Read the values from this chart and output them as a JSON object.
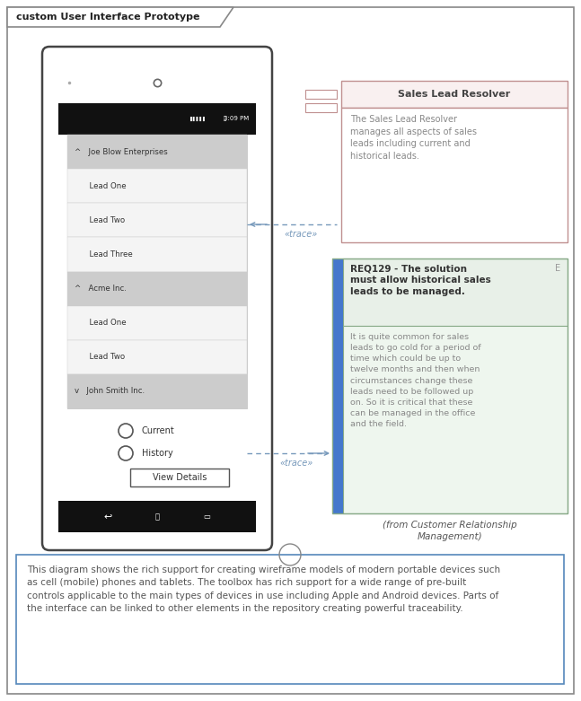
{
  "title": "custom User Interface Prototype",
  "bg_color": "#ffffff",
  "border_color": "#888888",
  "phone": {
    "body_color": "#ffffff",
    "body_border": "#444444",
    "screen_bg": "#111111",
    "list_header_bg": "#cccccc",
    "list_item_bg": "#f4f4f4",
    "items": [
      {
        "text": "^   Joe Blow Enterprises",
        "is_header": true
      },
      {
        "text": "      Lead One",
        "is_header": false
      },
      {
        "text": "      Lead Two",
        "is_header": false
      },
      {
        "text": "      Lead Three",
        "is_header": false
      },
      {
        "text": "^   Acme Inc.",
        "is_header": true
      },
      {
        "text": "      Lead One",
        "is_header": false
      },
      {
        "text": "      Lead Two",
        "is_header": false
      },
      {
        "text": "v   John Smith Inc.",
        "is_header": true
      }
    ]
  },
  "resolver_title": "Sales Lead Resolver",
  "resolver_desc": "The Sales Lead Resolver\nmanages all aspects of sales\nleads including current and\nhistorical leads.",
  "resolver_border": "#c09090",
  "resolver_title_bg": "#f9f0f0",
  "req_title": "REQ129 - The solution\nmust allow historical sales\nleads to be managed.",
  "req_desc": "It is quite common for sales\nleads to go cold for a period of\ntime which could be up to\ntwelve months and then when\ncircumstances change these\nleads need to be followed up\non. So it is critical that these\ncan be managed in the office\nand the field.",
  "req_border": "#88aa88",
  "req_title_bg": "#e8f0e8",
  "req_body_bg": "#eef6ee",
  "req_bar_color": "#4477cc",
  "from_text": "(from Customer Relationship\nManagement)",
  "note_border": "#5588bb",
  "note_text": "This diagram shows the rich support for creating wireframe models of modern portable devices such\nas cell (mobile) phones and tablets. The toolbox has rich support for a wide range of pre-built\ncontrols applicable to the main types of devices in use including Apple and Android devices. Parts of\nthe interface can be linked to other elements in the repository creating powerful traceability.",
  "trace_color": "#7799bb",
  "desc_color": "#888888",
  "text_color": "#555555"
}
